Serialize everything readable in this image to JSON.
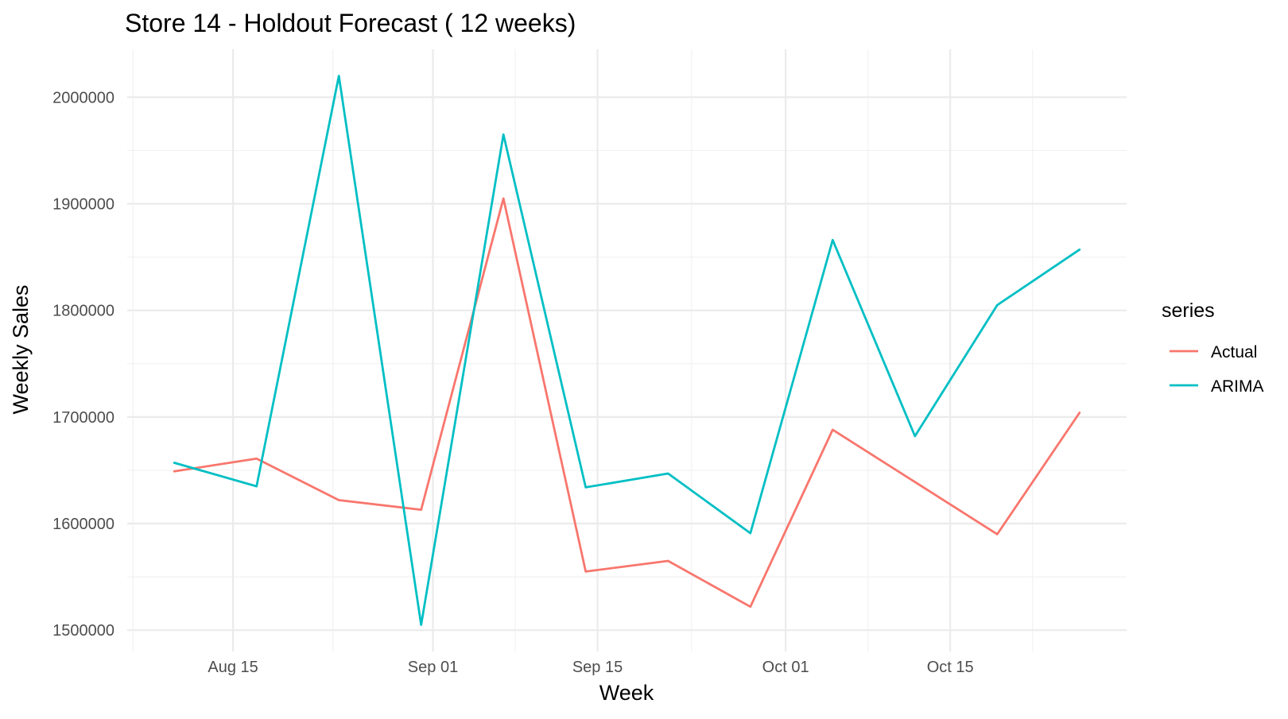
{
  "chart_data": {
    "type": "line",
    "title": "Store 14 - Holdout Forecast ( 12  weeks)",
    "xlabel": "Week",
    "ylabel": "Weekly Sales",
    "x": [
      "2012-08-10",
      "2012-08-17",
      "2012-08-24",
      "2012-08-31",
      "2012-09-07",
      "2012-09-14",
      "2012-09-21",
      "2012-09-28",
      "2012-10-05",
      "2012-10-12",
      "2012-10-19",
      "2012-10-26"
    ],
    "x_ticks": [
      {
        "date": "2012-08-15",
        "label": "Aug 15"
      },
      {
        "date": "2012-09-01",
        "label": "Sep 01"
      },
      {
        "date": "2012-09-15",
        "label": "Sep 15"
      },
      {
        "date": "2012-10-01",
        "label": "Oct 01"
      },
      {
        "date": "2012-10-15",
        "label": "Oct 15"
      }
    ],
    "xlim": [
      "2012-08-06",
      "2012-10-30"
    ],
    "ylim": [
      1480000,
      2045000
    ],
    "y_ticks": [
      1500000,
      1600000,
      1700000,
      1800000,
      1900000,
      2000000
    ],
    "y_tick_labels": [
      "1500000",
      "1600000",
      "1700000",
      "1800000",
      "1900000",
      "2000000"
    ],
    "grid": true,
    "legend_title": "series",
    "legend_position": "right",
    "series": [
      {
        "name": "Actual",
        "color": "#F8766D",
        "values": [
          1649000,
          1661000,
          1622000,
          1613000,
          1905000,
          1555000,
          1565000,
          1522000,
          1688000,
          1639000,
          1590000,
          1704000
        ]
      },
      {
        "name": "ARIMA",
        "color": "#00BFC4",
        "values": [
          1657000,
          1635000,
          2020000,
          1505000,
          1965000,
          1634000,
          1647000,
          1591000,
          1866000,
          1682000,
          1805000,
          1857000
        ]
      }
    ]
  }
}
